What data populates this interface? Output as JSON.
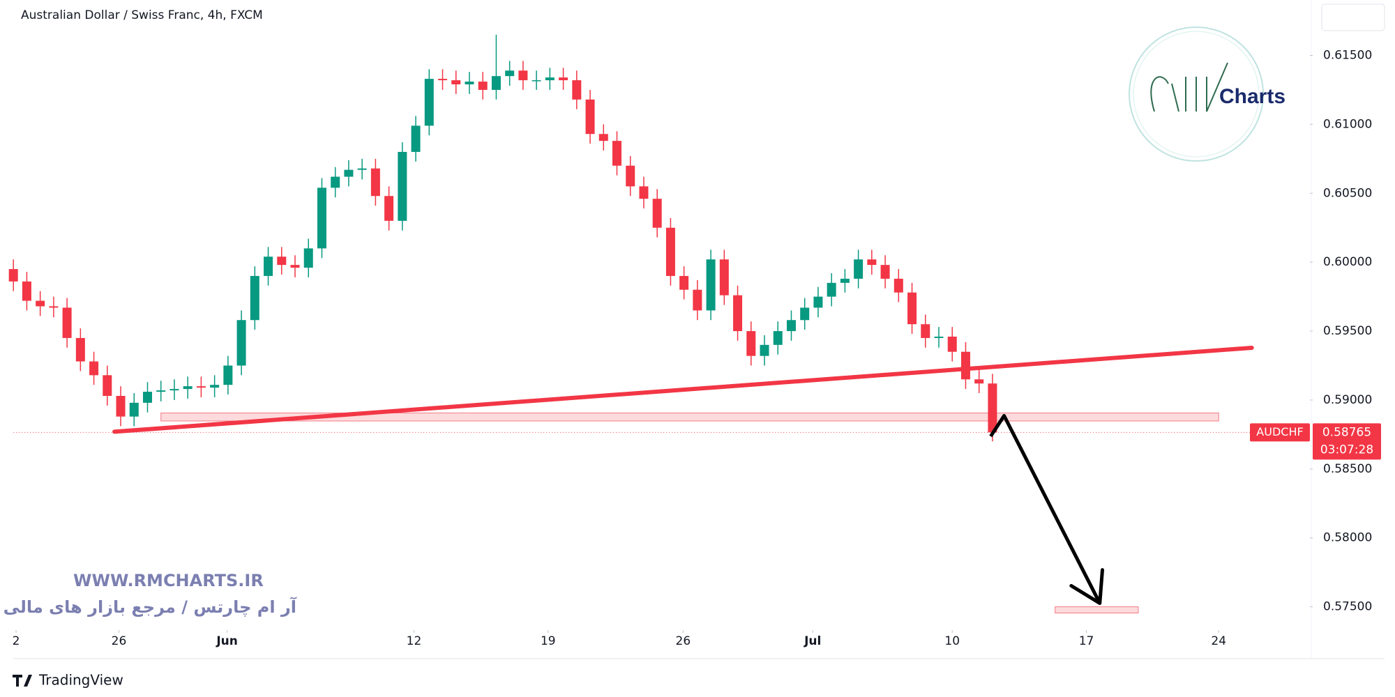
{
  "chart_data": {
    "type": "candlestick",
    "title": "Australian Dollar / Swiss Franc, 4h, FXCM",
    "x": [
      0,
      3,
      6,
      9,
      12,
      15,
      18,
      21,
      24,
      27,
      30,
      33,
      36,
      39,
      42,
      45,
      48,
      51,
      54,
      57,
      60,
      63,
      66,
      69,
      72,
      75,
      78,
      81,
      84,
      87,
      90,
      93,
      96,
      99,
      102,
      105,
      108,
      111,
      114,
      117,
      120,
      123,
      126,
      129,
      132,
      135,
      138,
      141,
      144,
      147,
      150,
      153,
      156,
      159,
      162,
      165,
      168,
      171,
      174,
      177,
      180,
      183,
      186,
      189,
      192,
      195,
      198,
      201,
      204,
      207,
      210,
      213,
      216,
      219
    ],
    "open": [
      0.5995,
      0.5986,
      0.5972,
      0.5968,
      0.5967,
      0.5945,
      0.5928,
      0.5918,
      0.5903,
      0.5888,
      0.5898,
      0.5906,
      0.5907,
      0.5908,
      0.591,
      0.5909,
      0.5911,
      0.5925,
      0.5958,
      0.599,
      0.6004,
      0.5998,
      0.5996,
      0.601,
      0.6054,
      0.6062,
      0.6067,
      0.6068,
      0.6048,
      0.603,
      0.608,
      0.6099,
      0.6133,
      0.6132,
      0.6129,
      0.6131,
      0.6125,
      0.6135,
      0.6139,
      0.6132,
      0.6132,
      0.6134,
      0.6132,
      0.6118,
      0.6093,
      0.6088,
      0.607,
      0.6055,
      0.6046,
      0.6025,
      0.599,
      0.598,
      0.5965,
      0.6002,
      0.5976,
      0.595,
      0.5932,
      0.594,
      0.595,
      0.5958,
      0.5967,
      0.5975,
      0.5985,
      0.5988,
      0.6002,
      0.5998,
      0.5988,
      0.5978,
      0.5955,
      0.5945,
      0.5946,
      0.5935,
      0.5915,
      0.5912
    ],
    "high": [
      0.6002,
      0.5993,
      0.5979,
      0.5975,
      0.5974,
      0.5952,
      0.5935,
      0.5925,
      0.591,
      0.5905,
      0.5913,
      0.5914,
      0.5915,
      0.5917,
      0.5917,
      0.5918,
      0.5932,
      0.5965,
      0.5997,
      0.6011,
      0.6011,
      0.6005,
      0.6017,
      0.6061,
      0.6069,
      0.6074,
      0.6075,
      0.6075,
      0.6055,
      0.6087,
      0.6106,
      0.614,
      0.614,
      0.6139,
      0.6138,
      0.6138,
      0.6165,
      0.6146,
      0.6146,
      0.6139,
      0.6141,
      0.6141,
      0.6139,
      0.6125,
      0.61,
      0.6095,
      0.6077,
      0.6062,
      0.6053,
      0.6032,
      0.5997,
      0.5987,
      0.6009,
      0.6009,
      0.5983,
      0.5957,
      0.5947,
      0.5957,
      0.5965,
      0.5974,
      0.5982,
      0.5992,
      0.5995,
      0.6009,
      0.6009,
      0.6005,
      0.5995,
      0.5985,
      0.5962,
      0.5953,
      0.5953,
      0.5942,
      0.5922,
      0.5919
    ],
    "low": [
      0.5979,
      0.5965,
      0.5961,
      0.596,
      0.5938,
      0.5921,
      0.5911,
      0.5896,
      0.5881,
      0.5881,
      0.5891,
      0.5899,
      0.59,
      0.5901,
      0.5902,
      0.5902,
      0.5904,
      0.5918,
      0.5951,
      0.5983,
      0.5991,
      0.5989,
      0.5989,
      0.6003,
      0.6047,
      0.6055,
      0.606,
      0.6041,
      0.6023,
      0.6023,
      0.6073,
      0.6092,
      0.6125,
      0.6122,
      0.6122,
      0.6118,
      0.6118,
      0.6128,
      0.6125,
      0.6125,
      0.6125,
      0.6125,
      0.6111,
      0.6086,
      0.6081,
      0.6063,
      0.6048,
      0.6039,
      0.6018,
      0.5983,
      0.5973,
      0.5958,
      0.5958,
      0.5969,
      0.5943,
      0.5925,
      0.5925,
      0.5933,
      0.5943,
      0.5951,
      0.596,
      0.5968,
      0.5978,
      0.5981,
      0.5991,
      0.5981,
      0.5971,
      0.5948,
      0.5938,
      0.5938,
      0.5928,
      0.5908,
      0.5905,
      0.587
    ],
    "close": [
      0.5986,
      0.5972,
      0.5968,
      0.5967,
      0.5945,
      0.5928,
      0.5918,
      0.5903,
      0.5888,
      0.5898,
      0.5906,
      0.5907,
      0.5908,
      0.591,
      0.5909,
      0.5911,
      0.5925,
      0.5958,
      0.599,
      0.6004,
      0.5998,
      0.5996,
      0.601,
      0.6054,
      0.6062,
      0.6067,
      0.6068,
      0.6048,
      0.603,
      0.608,
      0.6099,
      0.6133,
      0.6132,
      0.6129,
      0.6131,
      0.6125,
      0.6135,
      0.6139,
      0.6132,
      0.6132,
      0.6134,
      0.6132,
      0.6118,
      0.6093,
      0.6088,
      0.607,
      0.6055,
      0.6046,
      0.6025,
      0.599,
      0.598,
      0.5965,
      0.6002,
      0.5976,
      0.595,
      0.5932,
      0.594,
      0.595,
      0.5958,
      0.5967,
      0.5975,
      0.5985,
      0.5988,
      0.6002,
      0.5998,
      0.5988,
      0.5978,
      0.5955,
      0.5945,
      0.5946,
      0.5935,
      0.5915,
      0.5912,
      0.58765
    ],
    "up_color": "#089981",
    "down_color": "#f23645",
    "xlim": [
      0,
      290
    ],
    "xticks": [
      {
        "value": 0.6,
        "label": "2"
      },
      {
        "value": 23.6,
        "label": "26"
      },
      {
        "value": 47.8,
        "label": "Jun"
      },
      {
        "value": 89.6,
        "label": "12"
      },
      {
        "value": 119.6,
        "label": "19"
      },
      {
        "value": 149.8,
        "label": "26"
      },
      {
        "value": 178.8,
        "label": "Jul"
      },
      {
        "value": 210,
        "label": "10"
      },
      {
        "value": 240,
        "label": "17"
      },
      {
        "value": 269.6,
        "label": "24"
      }
    ],
    "ylim": [
      0.57331,
      0.61902
    ],
    "yticks": [
      {
        "value": 0.575,
        "label": "0.57500"
      },
      {
        "value": 0.58,
        "label": "0.58000"
      },
      {
        "value": 0.585,
        "label": "0.58500"
      },
      {
        "value": 0.59,
        "label": "0.59000"
      },
      {
        "value": 0.595,
        "label": "0.59500"
      },
      {
        "value": 0.6,
        "label": "0.60000"
      },
      {
        "value": 0.605,
        "label": "0.60500"
      },
      {
        "value": 0.61,
        "label": "0.61000"
      },
      {
        "value": 0.615,
        "label": "0.61500"
      }
    ],
    "grid": false,
    "trendline": {
      "x": [
        22.6,
        277
      ],
      "y": [
        0.5877,
        0.59379
      ],
      "color": "#f23645"
    },
    "support_zone": {
      "x": [
        33,
        269.6
      ],
      "y": [
        0.58848,
        0.58906
      ]
    },
    "target_zone": {
      "x": [
        233,
        251.6
      ],
      "y": [
        0.57455,
        0.575
      ]
    },
    "arrow": {
      "x": [
        218.6,
        221.6,
        243
      ],
      "y": [
        0.58737,
        0.58886,
        0.57526
      ]
    },
    "last_price": {
      "symbol": "AUDCHF",
      "value": 0.58765,
      "countdown": "03:07:28"
    },
    "watermark": {
      "url": "WWW.RMCHARTS.IR",
      "persian": "آر ام چارتس / مرجع بازار های مالی"
    },
    "logo_text": "Charts",
    "brand": "TradingView"
  }
}
